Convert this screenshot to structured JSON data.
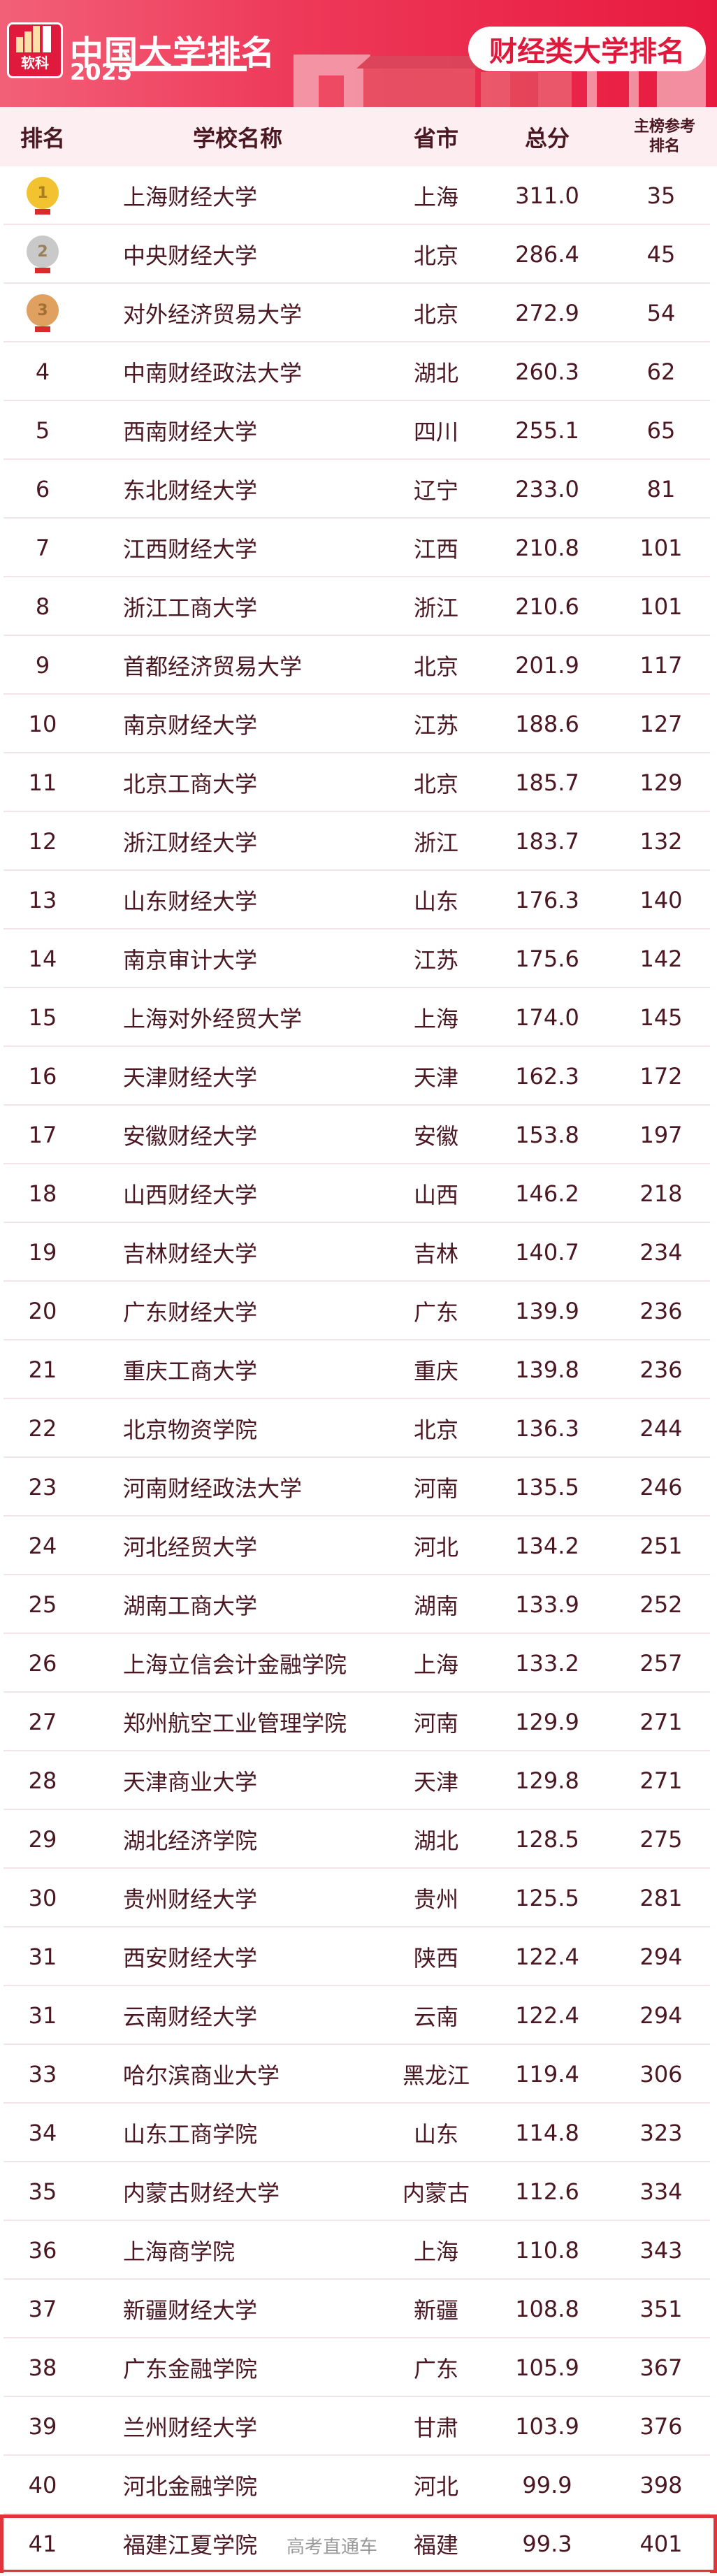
{
  "header": {
    "logo_text": "软科",
    "title": "中国大学排名",
    "year": "2025",
    "category_badge": "财经类大学排名",
    "accent_color": "#e8193f"
  },
  "table": {
    "columns": [
      "排名",
      "学校名称",
      "省市",
      "总分",
      "主榜参考排名"
    ],
    "ref_column_lines": [
      "主榜参考",
      "排名"
    ],
    "medal_colors": {
      "1": "#f2c230",
      "2": "#c9c9c9",
      "3": "#e0a060"
    },
    "highlight_rank_row": 41,
    "rows": [
      {
        "rank": "1",
        "name": "上海财经大学",
        "province": "上海",
        "score": "311.0",
        "ref": "35",
        "medal": "gold"
      },
      {
        "rank": "2",
        "name": "中央财经大学",
        "province": "北京",
        "score": "286.4",
        "ref": "45",
        "medal": "silver"
      },
      {
        "rank": "3",
        "name": "对外经济贸易大学",
        "province": "北京",
        "score": "272.9",
        "ref": "54",
        "medal": "bronze"
      },
      {
        "rank": "4",
        "name": "中南财经政法大学",
        "province": "湖北",
        "score": "260.3",
        "ref": "62"
      },
      {
        "rank": "5",
        "name": "西南财经大学",
        "province": "四川",
        "score": "255.1",
        "ref": "65"
      },
      {
        "rank": "6",
        "name": "东北财经大学",
        "province": "辽宁",
        "score": "233.0",
        "ref": "81"
      },
      {
        "rank": "7",
        "name": "江西财经大学",
        "province": "江西",
        "score": "210.8",
        "ref": "101"
      },
      {
        "rank": "8",
        "name": "浙江工商大学",
        "province": "浙江",
        "score": "210.6",
        "ref": "101"
      },
      {
        "rank": "9",
        "name": "首都经济贸易大学",
        "province": "北京",
        "score": "201.9",
        "ref": "117"
      },
      {
        "rank": "10",
        "name": "南京财经大学",
        "province": "江苏",
        "score": "188.6",
        "ref": "127"
      },
      {
        "rank": "11",
        "name": "北京工商大学",
        "province": "北京",
        "score": "185.7",
        "ref": "129"
      },
      {
        "rank": "12",
        "name": "浙江财经大学",
        "province": "浙江",
        "score": "183.7",
        "ref": "132"
      },
      {
        "rank": "13",
        "name": "山东财经大学",
        "province": "山东",
        "score": "176.3",
        "ref": "140"
      },
      {
        "rank": "14",
        "name": "南京审计大学",
        "province": "江苏",
        "score": "175.6",
        "ref": "142"
      },
      {
        "rank": "15",
        "name": "上海对外经贸大学",
        "province": "上海",
        "score": "174.0",
        "ref": "145"
      },
      {
        "rank": "16",
        "name": "天津财经大学",
        "province": "天津",
        "score": "162.3",
        "ref": "172"
      },
      {
        "rank": "17",
        "name": "安徽财经大学",
        "province": "安徽",
        "score": "153.8",
        "ref": "197"
      },
      {
        "rank": "18",
        "name": "山西财经大学",
        "province": "山西",
        "score": "146.2",
        "ref": "218"
      },
      {
        "rank": "19",
        "name": "吉林财经大学",
        "province": "吉林",
        "score": "140.7",
        "ref": "234"
      },
      {
        "rank": "20",
        "name": "广东财经大学",
        "province": "广东",
        "score": "139.9",
        "ref": "236"
      },
      {
        "rank": "21",
        "name": "重庆工商大学",
        "province": "重庆",
        "score": "139.8",
        "ref": "236"
      },
      {
        "rank": "22",
        "name": "北京物资学院",
        "province": "北京",
        "score": "136.3",
        "ref": "244"
      },
      {
        "rank": "23",
        "name": "河南财经政法大学",
        "province": "河南",
        "score": "135.5",
        "ref": "246"
      },
      {
        "rank": "24",
        "name": "河北经贸大学",
        "province": "河北",
        "score": "134.2",
        "ref": "251"
      },
      {
        "rank": "25",
        "name": "湖南工商大学",
        "province": "湖南",
        "score": "133.9",
        "ref": "252"
      },
      {
        "rank": "26",
        "name": "上海立信会计金融学院",
        "province": "上海",
        "score": "133.2",
        "ref": "257"
      },
      {
        "rank": "27",
        "name": "郑州航空工业管理学院",
        "province": "河南",
        "score": "129.9",
        "ref": "271"
      },
      {
        "rank": "28",
        "name": "天津商业大学",
        "province": "天津",
        "score": "129.8",
        "ref": "271"
      },
      {
        "rank": "29",
        "name": "湖北经济学院",
        "province": "湖北",
        "score": "128.5",
        "ref": "275"
      },
      {
        "rank": "30",
        "name": "贵州财经大学",
        "province": "贵州",
        "score": "125.5",
        "ref": "281"
      },
      {
        "rank": "31",
        "name": "西安财经大学",
        "province": "陕西",
        "score": "122.4",
        "ref": "294"
      },
      {
        "rank": "31",
        "name": "云南财经大学",
        "province": "云南",
        "score": "122.4",
        "ref": "294"
      },
      {
        "rank": "33",
        "name": "哈尔滨商业大学",
        "province": "黑龙江",
        "score": "119.4",
        "ref": "306"
      },
      {
        "rank": "34",
        "name": "山东工商学院",
        "province": "山东",
        "score": "114.8",
        "ref": "323"
      },
      {
        "rank": "35",
        "name": "内蒙古财经大学",
        "province": "内蒙古",
        "score": "112.6",
        "ref": "334"
      },
      {
        "rank": "36",
        "name": "上海商学院",
        "province": "上海",
        "score": "110.8",
        "ref": "343"
      },
      {
        "rank": "37",
        "name": "新疆财经大学",
        "province": "新疆",
        "score": "108.8",
        "ref": "351"
      },
      {
        "rank": "38",
        "name": "广东金融学院",
        "province": "广东",
        "score": "105.9",
        "ref": "367"
      },
      {
        "rank": "39",
        "name": "兰州财经大学",
        "province": "甘肃",
        "score": "103.9",
        "ref": "376"
      },
      {
        "rank": "40",
        "name": "河北金融学院",
        "province": "河北",
        "score": "99.9",
        "ref": "398"
      },
      {
        "rank": "41",
        "name": "福建江夏学院",
        "province": "福建",
        "score": "99.3",
        "ref": "401",
        "highlighted": true
      }
    ]
  },
  "watermark": "高考直通车"
}
